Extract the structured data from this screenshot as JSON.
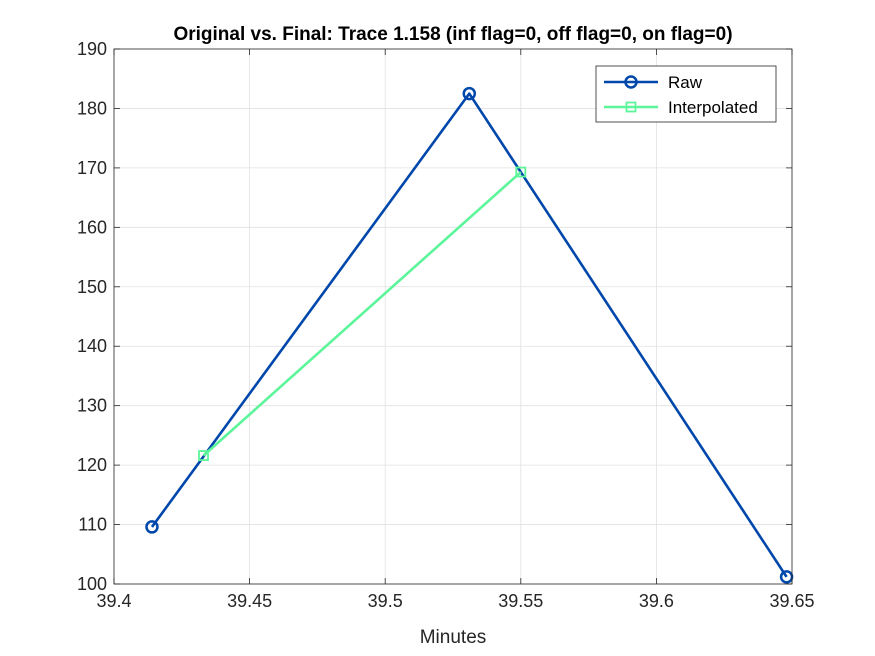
{
  "chart_data": {
    "type": "line",
    "title": "Original vs. Final: Trace 1.158 (inf flag=0, off flag=0, on flag=0)",
    "xlabel": "Minutes",
    "ylabel": "",
    "xlim": [
      39.4,
      39.65
    ],
    "ylim": [
      100,
      190
    ],
    "xticks": [
      39.4,
      39.45,
      39.5,
      39.55,
      39.6,
      39.65
    ],
    "xtick_labels": [
      "39.4",
      "39.45",
      "39.5",
      "39.55",
      "39.6",
      "39.65"
    ],
    "yticks": [
      100,
      110,
      120,
      130,
      140,
      150,
      160,
      170,
      180,
      190
    ],
    "ytick_labels": [
      "100",
      "110",
      "120",
      "130",
      "140",
      "150",
      "160",
      "170",
      "180",
      "190"
    ],
    "grid": true,
    "legend_position": "top-right",
    "series": [
      {
        "name": "Raw",
        "color": "#0047AB",
        "marker": "circle",
        "x": [
          39.414,
          39.531,
          39.648
        ],
        "y": [
          109.6,
          182.5,
          101.2
        ]
      },
      {
        "name": "Interpolated",
        "color": "#5CF59A",
        "marker": "square",
        "x": [
          39.433,
          39.55
        ],
        "y": [
          121.6,
          169.3
        ]
      }
    ]
  }
}
